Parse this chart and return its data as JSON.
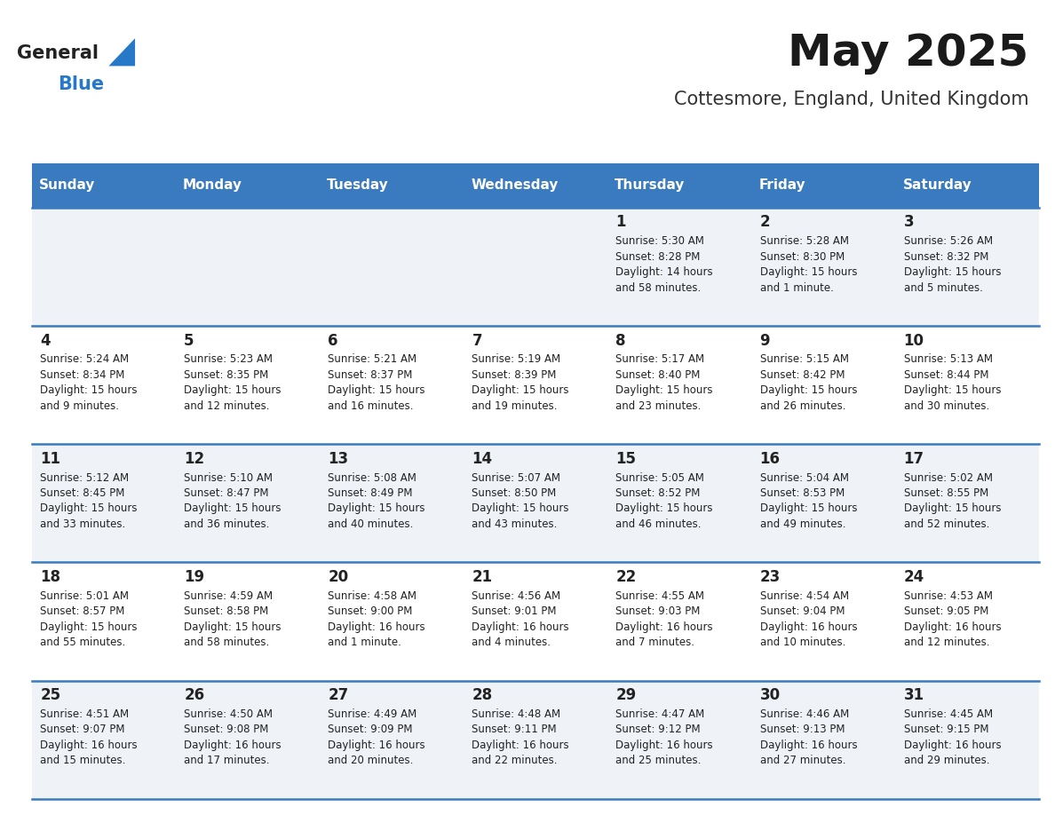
{
  "title": "May 2025",
  "subtitle": "Cottesmore, England, United Kingdom",
  "days_of_week": [
    "Sunday",
    "Monday",
    "Tuesday",
    "Wednesday",
    "Thursday",
    "Friday",
    "Saturday"
  ],
  "header_bg": "#3a7bbf",
  "header_text": "#ffffff",
  "row_bg_odd": "#eff3f8",
  "row_bg_even": "#ffffff",
  "cell_text": "#222222",
  "separator_color": "#3a7bbf",
  "logo_general_color": "#222222",
  "logo_blue_color": "#2878c8",
  "logo_triangle_color": "#2878c8",
  "calendar_data": [
    [
      null,
      null,
      null,
      null,
      {
        "day": 1,
        "sunrise": "5:30 AM",
        "sunset": "8:28 PM",
        "daylight": "14 hours and 58 minutes"
      },
      {
        "day": 2,
        "sunrise": "5:28 AM",
        "sunset": "8:30 PM",
        "daylight": "15 hours and 1 minute"
      },
      {
        "day": 3,
        "sunrise": "5:26 AM",
        "sunset": "8:32 PM",
        "daylight": "15 hours and 5 minutes"
      }
    ],
    [
      {
        "day": 4,
        "sunrise": "5:24 AM",
        "sunset": "8:34 PM",
        "daylight": "15 hours and 9 minutes"
      },
      {
        "day": 5,
        "sunrise": "5:23 AM",
        "sunset": "8:35 PM",
        "daylight": "15 hours and 12 minutes"
      },
      {
        "day": 6,
        "sunrise": "5:21 AM",
        "sunset": "8:37 PM",
        "daylight": "15 hours and 16 minutes"
      },
      {
        "day": 7,
        "sunrise": "5:19 AM",
        "sunset": "8:39 PM",
        "daylight": "15 hours and 19 minutes"
      },
      {
        "day": 8,
        "sunrise": "5:17 AM",
        "sunset": "8:40 PM",
        "daylight": "15 hours and 23 minutes"
      },
      {
        "day": 9,
        "sunrise": "5:15 AM",
        "sunset": "8:42 PM",
        "daylight": "15 hours and 26 minutes"
      },
      {
        "day": 10,
        "sunrise": "5:13 AM",
        "sunset": "8:44 PM",
        "daylight": "15 hours and 30 minutes"
      }
    ],
    [
      {
        "day": 11,
        "sunrise": "5:12 AM",
        "sunset": "8:45 PM",
        "daylight": "15 hours and 33 minutes"
      },
      {
        "day": 12,
        "sunrise": "5:10 AM",
        "sunset": "8:47 PM",
        "daylight": "15 hours and 36 minutes"
      },
      {
        "day": 13,
        "sunrise": "5:08 AM",
        "sunset": "8:49 PM",
        "daylight": "15 hours and 40 minutes"
      },
      {
        "day": 14,
        "sunrise": "5:07 AM",
        "sunset": "8:50 PM",
        "daylight": "15 hours and 43 minutes"
      },
      {
        "day": 15,
        "sunrise": "5:05 AM",
        "sunset": "8:52 PM",
        "daylight": "15 hours and 46 minutes"
      },
      {
        "day": 16,
        "sunrise": "5:04 AM",
        "sunset": "8:53 PM",
        "daylight": "15 hours and 49 minutes"
      },
      {
        "day": 17,
        "sunrise": "5:02 AM",
        "sunset": "8:55 PM",
        "daylight": "15 hours and 52 minutes"
      }
    ],
    [
      {
        "day": 18,
        "sunrise": "5:01 AM",
        "sunset": "8:57 PM",
        "daylight": "15 hours and 55 minutes"
      },
      {
        "day": 19,
        "sunrise": "4:59 AM",
        "sunset": "8:58 PM",
        "daylight": "15 hours and 58 minutes"
      },
      {
        "day": 20,
        "sunrise": "4:58 AM",
        "sunset": "9:00 PM",
        "daylight": "16 hours and 1 minute"
      },
      {
        "day": 21,
        "sunrise": "4:56 AM",
        "sunset": "9:01 PM",
        "daylight": "16 hours and 4 minutes"
      },
      {
        "day": 22,
        "sunrise": "4:55 AM",
        "sunset": "9:03 PM",
        "daylight": "16 hours and 7 minutes"
      },
      {
        "day": 23,
        "sunrise": "4:54 AM",
        "sunset": "9:04 PM",
        "daylight": "16 hours and 10 minutes"
      },
      {
        "day": 24,
        "sunrise": "4:53 AM",
        "sunset": "9:05 PM",
        "daylight": "16 hours and 12 minutes"
      }
    ],
    [
      {
        "day": 25,
        "sunrise": "4:51 AM",
        "sunset": "9:07 PM",
        "daylight": "16 hours and 15 minutes"
      },
      {
        "day": 26,
        "sunrise": "4:50 AM",
        "sunset": "9:08 PM",
        "daylight": "16 hours and 17 minutes"
      },
      {
        "day": 27,
        "sunrise": "4:49 AM",
        "sunset": "9:09 PM",
        "daylight": "16 hours and 20 minutes"
      },
      {
        "day": 28,
        "sunrise": "4:48 AM",
        "sunset": "9:11 PM",
        "daylight": "16 hours and 22 minutes"
      },
      {
        "day": 29,
        "sunrise": "4:47 AM",
        "sunset": "9:12 PM",
        "daylight": "16 hours and 25 minutes"
      },
      {
        "day": 30,
        "sunrise": "4:46 AM",
        "sunset": "9:13 PM",
        "daylight": "16 hours and 27 minutes"
      },
      {
        "day": 31,
        "sunrise": "4:45 AM",
        "sunset": "9:15 PM",
        "daylight": "16 hours and 29 minutes"
      }
    ]
  ]
}
